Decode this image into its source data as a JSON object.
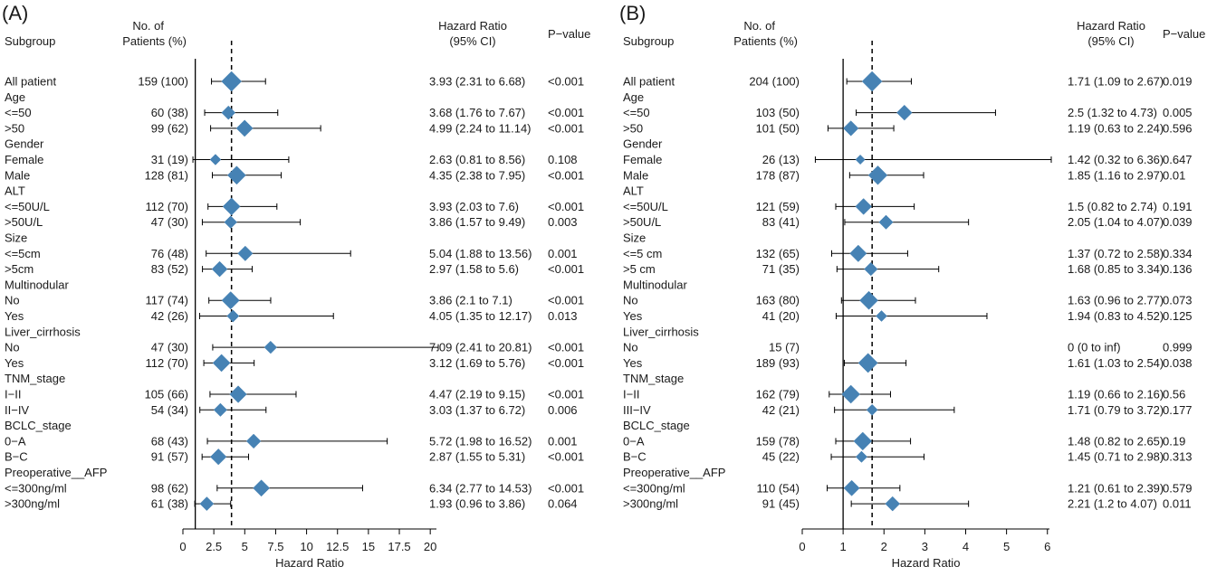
{
  "chart_data": [
    {
      "type": "forest",
      "panel_label": "(A)",
      "headers": {
        "subgroup": "Subgroup",
        "patients_line1": "No. of",
        "patients_line2": "Patients (%)",
        "hr_line1": "Hazard Ratio",
        "hr_line2": "(95% CI)",
        "pvalue": "P−value"
      },
      "xlabel": "Hazard Ratio",
      "xlim": [
        0,
        20.5
      ],
      "xticks": [
        0,
        2.5,
        5,
        7.5,
        10,
        12.5,
        15,
        17.5,
        20
      ],
      "xtick_labels": [
        "0",
        "2.5",
        "5",
        "7.5",
        "10",
        "12.5",
        "15",
        "17.5",
        "20"
      ],
      "reference_line": 1,
      "overall_line": 3.93,
      "marker_color": "#4682b4",
      "rows": [
        {
          "label": "All patient",
          "n": "159 (100)",
          "hr_text": "3.93 (2.31 to 6.68)",
          "p": "<0.001",
          "hr": 3.93,
          "lo": 2.31,
          "hi": 6.68,
          "weight": 159
        },
        {
          "label": "Age",
          "header": true
        },
        {
          "label": "<=50",
          "n": "60 (38)",
          "hr_text": "3.68 (1.76 to 7.67)",
          "p": "<0.001",
          "hr": 3.68,
          "lo": 1.76,
          "hi": 7.67,
          "weight": 60
        },
        {
          "label": ">50",
          "n": "99 (62)",
          "hr_text": "4.99 (2.24 to 11.14)",
          "p": "<0.001",
          "hr": 4.99,
          "lo": 2.24,
          "hi": 11.14,
          "weight": 99
        },
        {
          "label": "Gender",
          "header": true
        },
        {
          "label": "Female",
          "n": "31 (19)",
          "hr_text": "2.63 (0.81 to 8.56)",
          "p": "0.108",
          "hr": 2.63,
          "lo": 0.81,
          "hi": 8.56,
          "weight": 31
        },
        {
          "label": "Male",
          "n": "128 (81)",
          "hr_text": "4.35 (2.38 to 7.95)",
          "p": "<0.001",
          "hr": 4.35,
          "lo": 2.38,
          "hi": 7.95,
          "weight": 128
        },
        {
          "label": "ALT",
          "header": true
        },
        {
          "label": "<=50U/L",
          "n": "112 (70)",
          "hr_text": "3.93 (2.03 to 7.6)",
          "p": "<0.001",
          "hr": 3.93,
          "lo": 2.03,
          "hi": 7.6,
          "weight": 112
        },
        {
          "label": ">50U/L",
          "n": "47 (30)",
          "hr_text": "3.86 (1.57 to 9.49)",
          "p": "0.003",
          "hr": 3.86,
          "lo": 1.57,
          "hi": 9.49,
          "weight": 47
        },
        {
          "label": "Size",
          "header": true
        },
        {
          "label": "<=5cm",
          "n": "76 (48)",
          "hr_text": "5.04 (1.88 to 13.56)",
          "p": "0.001",
          "hr": 5.04,
          "lo": 1.88,
          "hi": 13.56,
          "weight": 76
        },
        {
          "label": ">5cm",
          "n": "83 (52)",
          "hr_text": "2.97 (1.58 to 5.6)",
          "p": "<0.001",
          "hr": 2.97,
          "lo": 1.58,
          "hi": 5.6,
          "weight": 83
        },
        {
          "label": "Multinodular",
          "header": true
        },
        {
          "label": "No",
          "n": "117 (74)",
          "hr_text": "3.86 (2.1 to 7.1)",
          "p": "<0.001",
          "hr": 3.86,
          "lo": 2.1,
          "hi": 7.1,
          "weight": 117
        },
        {
          "label": "Yes",
          "n": "42 (26)",
          "hr_text": "4.05 (1.35 to 12.17)",
          "p": "0.013",
          "hr": 4.05,
          "lo": 1.35,
          "hi": 12.17,
          "weight": 42
        },
        {
          "label": "Liver_cirrhosis",
          "header": true
        },
        {
          "label": "No",
          "n": "47 (30)",
          "hr_text": "7.09 (2.41 to 20.81)",
          "p": "<0.001",
          "hr": 7.09,
          "lo": 2.41,
          "hi": 20.81,
          "weight": 47
        },
        {
          "label": "Yes",
          "n": "112 (70)",
          "hr_text": "3.12 (1.69 to 5.76)",
          "p": "<0.001",
          "hr": 3.12,
          "lo": 1.69,
          "hi": 5.76,
          "weight": 112
        },
        {
          "label": "TNM_stage",
          "header": true
        },
        {
          "label": "I−II",
          "n": "105 (66)",
          "hr_text": "4.47 (2.19 to 9.15)",
          "p": "<0.001",
          "hr": 4.47,
          "lo": 2.19,
          "hi": 9.15,
          "weight": 105
        },
        {
          "label": "II−IV",
          "n": "54 (34)",
          "hr_text": "3.03 (1.37 to 6.72)",
          "p": "0.006",
          "hr": 3.03,
          "lo": 1.37,
          "hi": 6.72,
          "weight": 54
        },
        {
          "label": "BCLC_stage",
          "header": true
        },
        {
          "label": "0−A",
          "n": "68 (43)",
          "hr_text": "5.72 (1.98 to 16.52)",
          "p": "0.001",
          "hr": 5.72,
          "lo": 1.98,
          "hi": 16.52,
          "weight": 68
        },
        {
          "label": "B−C",
          "n": "91 (57)",
          "hr_text": "2.87 (1.55 to 5.31)",
          "p": "<0.001",
          "hr": 2.87,
          "lo": 1.55,
          "hi": 5.31,
          "weight": 91
        },
        {
          "label": "Preoperative__AFP",
          "header": true
        },
        {
          "label": "<=300ng/ml",
          "n": "98 (62)",
          "hr_text": "6.34 (2.77 to 14.53)",
          "p": "<0.001",
          "hr": 6.34,
          "lo": 2.77,
          "hi": 14.53,
          "weight": 98
        },
        {
          "label": ">300ng/ml",
          "n": "61 (38)",
          "hr_text": "1.93 (0.96 to 3.86)",
          "p": "0.064",
          "hr": 1.93,
          "lo": 0.96,
          "hi": 3.86,
          "weight": 61
        }
      ]
    },
    {
      "type": "forest",
      "panel_label": "(B)",
      "headers": {
        "subgroup": "Subgroup",
        "patients_line1": "No. of",
        "patients_line2": "Patients (%)",
        "hr_line1": "Hazard Ratio",
        "hr_line2": "(95% CI)",
        "pvalue": "P−value"
      },
      "xlabel": "Hazard Ratio",
      "xlim": [
        0,
        6.05
      ],
      "xticks": [
        0,
        1,
        2,
        3,
        4,
        5,
        6
      ],
      "xtick_labels": [
        "0",
        "1",
        "2",
        "3",
        "4",
        "5",
        "6"
      ],
      "reference_line": 1,
      "overall_line": 1.71,
      "marker_color": "#4682b4",
      "rows": [
        {
          "label": "All patient",
          "n": "204 (100)",
          "hr_text": "1.71 (1.09 to 2.67)",
          "p": "0.019",
          "hr": 1.71,
          "lo": 1.09,
          "hi": 2.67,
          "weight": 204
        },
        {
          "label": "Age",
          "header": true
        },
        {
          "label": "<=50",
          "n": "103 (50)",
          "hr_text": "2.5 (1.32 to 4.73)",
          "p": "0.005",
          "hr": 2.5,
          "lo": 1.32,
          "hi": 4.73,
          "weight": 103
        },
        {
          "label": ">50",
          "n": "101 (50)",
          "hr_text": "1.19 (0.63 to 2.24)",
          "p": "0.596",
          "hr": 1.19,
          "lo": 0.63,
          "hi": 2.24,
          "weight": 101
        },
        {
          "label": "Gender",
          "header": true
        },
        {
          "label": "Female",
          "n": "26 (13)",
          "hr_text": "1.42 (0.32 to 6.36)",
          "p": "0.647",
          "hr": 1.42,
          "lo": 0.32,
          "hi": 6.36,
          "weight": 26
        },
        {
          "label": "Male",
          "n": "178 (87)",
          "hr_text": "1.85 (1.16 to 2.97)",
          "p": "0.01",
          "hr": 1.85,
          "lo": 1.16,
          "hi": 2.97,
          "weight": 178
        },
        {
          "label": "ALT",
          "header": true
        },
        {
          "label": "<=50U/L",
          "n": "121 (59)",
          "hr_text": "1.5 (0.82 to 2.74)",
          "p": "0.191",
          "hr": 1.5,
          "lo": 0.82,
          "hi": 2.74,
          "weight": 121
        },
        {
          "label": ">50U/L",
          "n": "83 (41)",
          "hr_text": "2.05 (1.04 to 4.07)",
          "p": "0.039",
          "hr": 2.05,
          "lo": 1.04,
          "hi": 4.07,
          "weight": 83
        },
        {
          "label": "Size",
          "header": true
        },
        {
          "label": "<=5 cm",
          "n": "132 (65)",
          "hr_text": "1.37 (0.72 to 2.58)",
          "p": "0.334",
          "hr": 1.37,
          "lo": 0.72,
          "hi": 2.58,
          "weight": 132
        },
        {
          "label": ">5 cm",
          "n": "71 (35)",
          "hr_text": "1.68 (0.85 to 3.34)",
          "p": "0.136",
          "hr": 1.68,
          "lo": 0.85,
          "hi": 3.34,
          "weight": 71
        },
        {
          "label": "Multinodular",
          "header": true
        },
        {
          "label": "No",
          "n": "163 (80)",
          "hr_text": "1.63 (0.96 to 2.77)",
          "p": "0.073",
          "hr": 1.63,
          "lo": 0.96,
          "hi": 2.77,
          "weight": 163
        },
        {
          "label": "Yes",
          "n": "41 (20)",
          "hr_text": "1.94 (0.83 to 4.52)",
          "p": "0.125",
          "hr": 1.94,
          "lo": 0.83,
          "hi": 4.52,
          "weight": 41
        },
        {
          "label": "Liver_cirrhosis",
          "header": true
        },
        {
          "label": "No",
          "n": "15 (7)",
          "hr_text": "0 (0 to inf)",
          "p": "0.999",
          "hr": null,
          "lo": null,
          "hi": null,
          "weight": 15
        },
        {
          "label": "Yes",
          "n": "189 (93)",
          "hr_text": "1.61 (1.03 to 2.54)",
          "p": "0.038",
          "hr": 1.61,
          "lo": 1.03,
          "hi": 2.54,
          "weight": 189
        },
        {
          "label": "TNM_stage",
          "header": true
        },
        {
          "label": "I−II",
          "n": "162 (79)",
          "hr_text": "1.19 (0.66 to 2.16)",
          "p": "0.56",
          "hr": 1.19,
          "lo": 0.66,
          "hi": 2.16,
          "weight": 162
        },
        {
          "label": "III−IV",
          "n": "42 (21)",
          "hr_text": "1.71 (0.79 to 3.72)",
          "p": "0.177",
          "hr": 1.71,
          "lo": 0.79,
          "hi": 3.72,
          "weight": 42
        },
        {
          "label": "BCLC_stage",
          "header": true
        },
        {
          "label": "0−A",
          "n": "159 (78)",
          "hr_text": "1.48 (0.82 to 2.65)",
          "p": "0.19",
          "hr": 1.48,
          "lo": 0.82,
          "hi": 2.65,
          "weight": 159
        },
        {
          "label": "B−C",
          "n": "45 (22)",
          "hr_text": "1.45 (0.71 to 2.98)",
          "p": "0.313",
          "hr": 1.45,
          "lo": 0.71,
          "hi": 2.98,
          "weight": 45
        },
        {
          "label": "Preoperative__AFP",
          "header": true
        },
        {
          "label": "<=300ng/ml",
          "n": "110 (54)",
          "hr_text": "1.21 (0.61 to 2.39)",
          "p": "0.579",
          "hr": 1.21,
          "lo": 0.61,
          "hi": 2.39,
          "weight": 110
        },
        {
          "label": ">300ng/ml",
          "n": "91 (45)",
          "hr_text": "2.21 (1.2 to 4.07)",
          "p": "0.011",
          "hr": 2.21,
          "lo": 1.2,
          "hi": 4.07,
          "weight": 91
        }
      ]
    }
  ]
}
